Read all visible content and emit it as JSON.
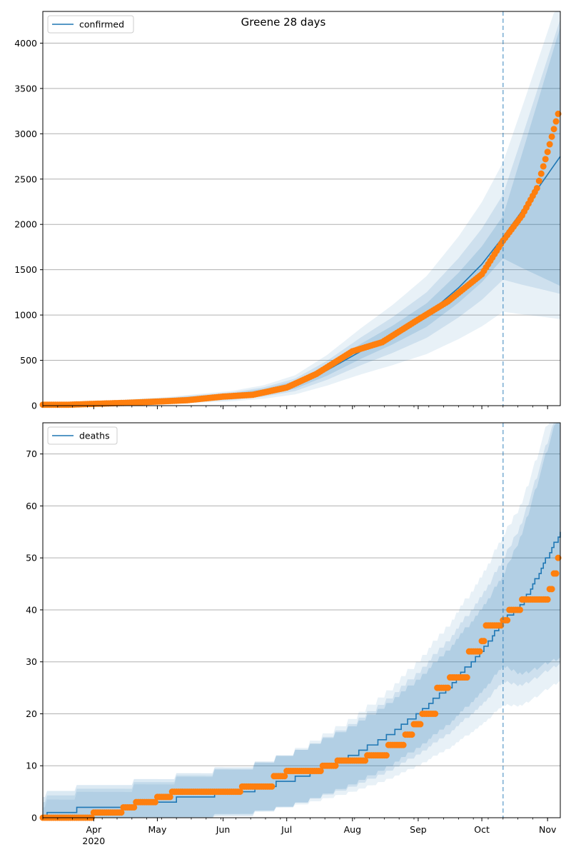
{
  "figure": {
    "title": "Greene 28 days",
    "x_tick_labels": [
      "Apr",
      "May",
      "Jun",
      "Jul",
      "Aug",
      "Sep",
      "Oct",
      "Nov"
    ],
    "x_year_label": "2020"
  },
  "colors": {
    "model": "#1f77b4",
    "observed": "#ff7f0e",
    "band": "#1f77b4",
    "vline": "#1f77b4",
    "grid": "#b0b0b0"
  },
  "chart_data": [
    {
      "type": "line",
      "legend": "confirmed",
      "legend_position": "top-left",
      "grid": "horizontal",
      "x_range": [
        "2020-03-08",
        "2020-11-07"
      ],
      "forecast_start": "2020-10-11",
      "ylim": [
        0,
        4350
      ],
      "yticks": [
        0,
        500,
        1000,
        1500,
        2000,
        2500,
        3000,
        3500,
        4000
      ],
      "model_points": [
        [
          "2020-03-08",
          10
        ],
        [
          "2020-03-21",
          12
        ],
        [
          "2020-04-05",
          25
        ],
        [
          "2020-04-20",
          40
        ],
        [
          "2020-05-05",
          55
        ],
        [
          "2020-05-20",
          80
        ],
        [
          "2020-06-05",
          105
        ],
        [
          "2020-06-20",
          150
        ],
        [
          "2020-07-05",
          230
        ],
        [
          "2020-07-20",
          390
        ],
        [
          "2020-08-05",
          600
        ],
        [
          "2020-08-20",
          780
        ],
        [
          "2020-09-05",
          1000
        ],
        [
          "2020-09-20",
          1300
        ],
        [
          "2020-10-01",
          1560
        ],
        [
          "2020-10-11",
          1860
        ],
        [
          "2020-10-20",
          2150
        ],
        [
          "2020-11-07",
          2750
        ]
      ],
      "band_half_widths": [
        [
          0.08,
          0.12
        ],
        [
          0.18,
          0.25
        ],
        [
          0.3,
          0.45
        ]
      ],
      "observed_points": [
        [
          "2020-03-08",
          10
        ],
        [
          "2020-03-20",
          10
        ],
        [
          "2020-04-01",
          20
        ],
        [
          "2020-04-15",
          30
        ],
        [
          "2020-05-01",
          45
        ],
        [
          "2020-05-15",
          60
        ],
        [
          "2020-06-01",
          100
        ],
        [
          "2020-06-15",
          120
        ],
        [
          "2020-07-01",
          200
        ],
        [
          "2020-07-15",
          350
        ],
        [
          "2020-08-01",
          600
        ],
        [
          "2020-08-15",
          700
        ],
        [
          "2020-09-01",
          950
        ],
        [
          "2020-09-15",
          1150
        ],
        [
          "2020-10-01",
          1450
        ],
        [
          "2020-10-11",
          1820
        ],
        [
          "2020-10-20",
          2100
        ],
        [
          "2020-10-27",
          2400
        ],
        [
          "2020-11-01",
          2800
        ],
        [
          "2020-11-06",
          3220
        ]
      ]
    },
    {
      "type": "line",
      "legend": "deaths",
      "legend_position": "top-left",
      "grid": "horizontal",
      "x_range": [
        "2020-03-08",
        "2020-11-07"
      ],
      "forecast_start": "2020-10-11",
      "ylim": [
        0,
        76
      ],
      "yticks": [
        0,
        10,
        20,
        30,
        40,
        50,
        60,
        70
      ],
      "model_points": [
        [
          "2020-03-08",
          0
        ],
        [
          "2020-03-12",
          1
        ],
        [
          "2020-04-05",
          2
        ],
        [
          "2020-05-05",
          3
        ],
        [
          "2020-05-15",
          4
        ],
        [
          "2020-06-10",
          5
        ],
        [
          "2020-07-01",
          7
        ],
        [
          "2020-07-15",
          9
        ],
        [
          "2020-08-01",
          12
        ],
        [
          "2020-08-15",
          15
        ],
        [
          "2020-09-01",
          20
        ],
        [
          "2020-09-15",
          25
        ],
        [
          "2020-10-01",
          32
        ],
        [
          "2020-10-11",
          38
        ],
        [
          "2020-10-20",
          41
        ],
        [
          "2020-11-07",
          55
        ]
      ],
      "band_half_widths": [
        [
          0.15,
          0.12
        ],
        [
          0.3,
          0.22
        ],
        [
          0.5,
          0.36
        ]
      ],
      "observed_points": [
        [
          "2020-03-08",
          0
        ],
        [
          "2020-04-01",
          1
        ],
        [
          "2020-04-15",
          2
        ],
        [
          "2020-04-21",
          3
        ],
        [
          "2020-05-01",
          4
        ],
        [
          "2020-05-08",
          5
        ],
        [
          "2020-06-10",
          6
        ],
        [
          "2020-06-25",
          8
        ],
        [
          "2020-07-01",
          9
        ],
        [
          "2020-07-18",
          10
        ],
        [
          "2020-07-25",
          11
        ],
        [
          "2020-08-08",
          12
        ],
        [
          "2020-08-18",
          14
        ],
        [
          "2020-08-26",
          16
        ],
        [
          "2020-08-30",
          18
        ],
        [
          "2020-09-03",
          20
        ],
        [
          "2020-09-10",
          25
        ],
        [
          "2020-09-16",
          27
        ],
        [
          "2020-09-25",
          32
        ],
        [
          "2020-10-01",
          34
        ],
        [
          "2020-10-03",
          37
        ],
        [
          "2020-10-11",
          38
        ],
        [
          "2020-10-14",
          40
        ],
        [
          "2020-10-20",
          42
        ],
        [
          "2020-11-01",
          42
        ],
        [
          "2020-11-02",
          44
        ],
        [
          "2020-11-04",
          47
        ],
        [
          "2020-11-06",
          50
        ]
      ]
    }
  ]
}
